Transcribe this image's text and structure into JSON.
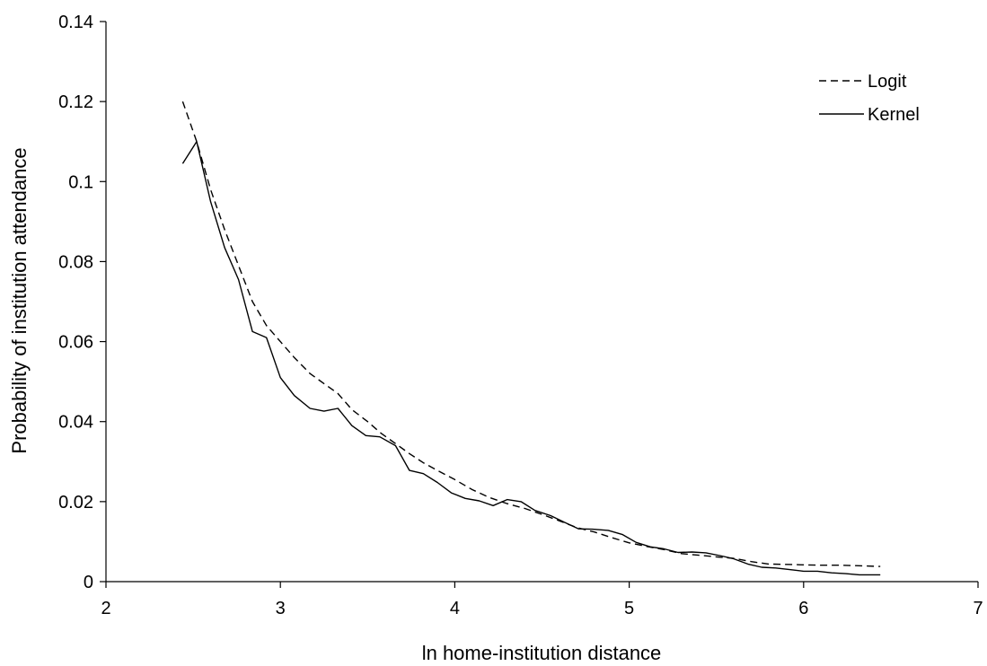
{
  "chart_data": {
    "type": "line",
    "xlabel": "ln home-institution distance",
    "ylabel": "Probability of institution attendance",
    "xlim": [
      2,
      7
    ],
    "ylim": [
      0,
      0.14
    ],
    "xticks": [
      "2",
      "3",
      "4",
      "5",
      "6",
      "7"
    ],
    "yticks": [
      "0",
      "0.02",
      "0.04",
      "0.06",
      "0.08",
      "0.1",
      "0.12",
      "0.14"
    ],
    "grid": false,
    "legend_position": "top-right",
    "series": [
      {
        "name": "Logit",
        "style": "dashed",
        "color": "#000000",
        "x": [
          2.44,
          2.52,
          2.6,
          2.68,
          2.76,
          2.84,
          2.92,
          3.0,
          3.08,
          3.17,
          3.25,
          3.33,
          3.41,
          3.5,
          3.58,
          3.66,
          3.74,
          3.82,
          3.9,
          4.0,
          4.1,
          4.2,
          4.3,
          4.4,
          4.5,
          4.6,
          4.7,
          4.8,
          4.9,
          5.0,
          5.1,
          5.2,
          5.3,
          5.4,
          5.5,
          5.6,
          5.7,
          5.8,
          5.9,
          6.0,
          6.1,
          6.2,
          6.3,
          6.44
        ],
        "values": [
          0.12,
          0.11,
          0.098,
          0.088,
          0.079,
          0.07,
          0.064,
          0.06,
          0.056,
          0.052,
          0.0495,
          0.047,
          0.043,
          0.04,
          0.037,
          0.0345,
          0.032,
          0.0297,
          0.0278,
          0.0255,
          0.023,
          0.021,
          0.0195,
          0.0183,
          0.0168,
          0.0152,
          0.0135,
          0.0124,
          0.011,
          0.0097,
          0.0088,
          0.008,
          0.007,
          0.0066,
          0.0062,
          0.0058,
          0.005,
          0.0044,
          0.0043,
          0.0042,
          0.0041,
          0.0041,
          0.004,
          0.0038
        ]
      },
      {
        "name": "Kernel",
        "style": "solid",
        "color": "#000000",
        "x": [
          2.44,
          2.52,
          2.6,
          2.68,
          2.76,
          2.84,
          2.92,
          3.0,
          3.08,
          3.17,
          3.25,
          3.33,
          3.41,
          3.49,
          3.57,
          3.66,
          3.74,
          3.82,
          3.9,
          3.98,
          4.06,
          4.14,
          4.22,
          4.3,
          4.38,
          4.46,
          4.55,
          4.63,
          4.71,
          4.79,
          4.88,
          4.96,
          5.04,
          5.12,
          5.2,
          5.28,
          5.36,
          5.44,
          5.52,
          5.6,
          5.68,
          5.76,
          5.84,
          5.92,
          6.0,
          6.08,
          6.16,
          6.24,
          6.32,
          6.44
        ],
        "values": [
          0.1045,
          0.11,
          0.095,
          0.0835,
          0.0755,
          0.0625,
          0.061,
          0.051,
          0.0465,
          0.0433,
          0.0426,
          0.0433,
          0.039,
          0.0365,
          0.0362,
          0.034,
          0.0278,
          0.027,
          0.0248,
          0.0222,
          0.0208,
          0.0202,
          0.019,
          0.0205,
          0.02,
          0.0178,
          0.0165,
          0.0148,
          0.0132,
          0.0131,
          0.0128,
          0.0118,
          0.0098,
          0.0087,
          0.0082,
          0.0073,
          0.0074,
          0.0072,
          0.0065,
          0.0057,
          0.0044,
          0.0036,
          0.0034,
          0.003,
          0.0026,
          0.0026,
          0.0022,
          0.002,
          0.0017,
          0.0017
        ]
      }
    ]
  }
}
